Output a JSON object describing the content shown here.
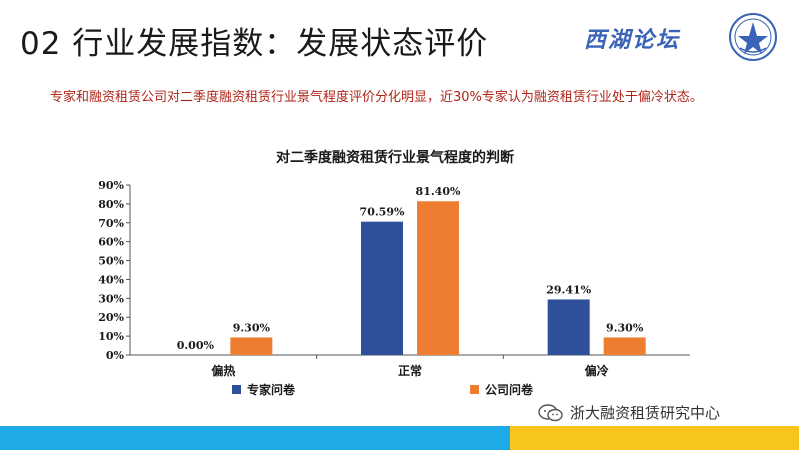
{
  "slide": {
    "title": "02 行业发展指数：发展状态评价",
    "logo_text": "西湖论坛",
    "intro": "专家和融资租赁公司对二季度融资租赁行业景气程度评价分化明显，近30%专家认为融资租赁行业处于偏冷状态。",
    "footer_brand": "浙大融资租赁研究中心"
  },
  "colors": {
    "series_expert": "#2e4f9a",
    "series_company": "#ed7d31",
    "intro_text": "#b02418",
    "bottom_blue": "#1eaae7",
    "bottom_yellow": "#f8c51c"
  },
  "chart_data": {
    "type": "bar",
    "title": "对二季度融资租赁行业景气程度的判断",
    "categories": [
      "偏热",
      "正常",
      "偏冷"
    ],
    "series": [
      {
        "name": "专家问卷",
        "values": [
          0.0,
          70.59,
          29.41
        ],
        "labels": [
          "0.00%",
          "70.59%",
          "29.41%"
        ]
      },
      {
        "name": "公司问卷",
        "values": [
          9.3,
          81.4,
          9.3
        ],
        "labels": [
          "9.30%",
          "81.40%",
          "9.30%"
        ]
      }
    ],
    "ylim": [
      0,
      90
    ],
    "yticks": [
      "0%",
      "10%",
      "20%",
      "30%",
      "40%",
      "50%",
      "60%",
      "70%",
      "80%",
      "90%"
    ],
    "xlabel": "",
    "ylabel": "",
    "legend_position": "bottom",
    "grid": false
  }
}
